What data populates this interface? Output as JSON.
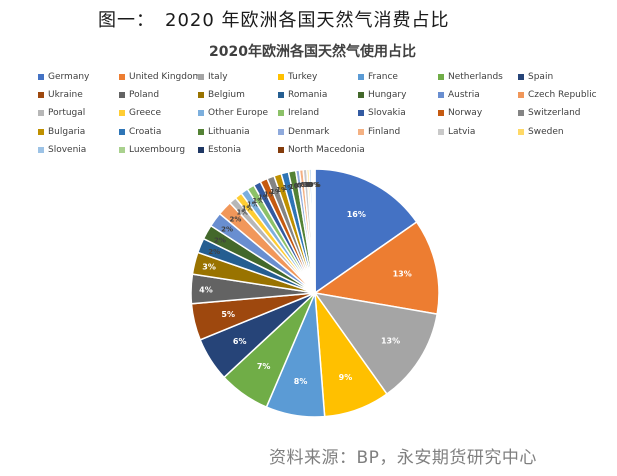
{
  "caption": "图一：　2020 年欧洲各国天然气消费占比",
  "source": "资料来源：BP，永安期货研究中心",
  "chart_data": {
    "type": "pie",
    "title": "2020年欧洲各国天然气使用占比",
    "legend_position": "top",
    "slices": [
      {
        "name": "Germany",
        "value": 16,
        "label": "16%",
        "color": "#4472C4"
      },
      {
        "name": "United Kingdom",
        "value": 13,
        "label": "13%",
        "color": "#ED7D31"
      },
      {
        "name": "Italy",
        "value": 13,
        "label": "13%",
        "color": "#A5A5A5"
      },
      {
        "name": "Turkey",
        "value": 9,
        "label": "9%",
        "color": "#FFC000"
      },
      {
        "name": "France",
        "value": 8,
        "label": "8%",
        "color": "#5B9BD5"
      },
      {
        "name": "Netherlands",
        "value": 7,
        "label": "7%",
        "color": "#70AD47"
      },
      {
        "name": "Spain",
        "value": 6,
        "label": "6%",
        "color": "#264478"
      },
      {
        "name": "Ukraine",
        "value": 5,
        "label": "5%",
        "color": "#9E480E"
      },
      {
        "name": "Poland",
        "value": 4,
        "label": "4%",
        "color": "#636363"
      },
      {
        "name": "Belgium",
        "value": 3,
        "label": "3%",
        "color": "#997300"
      },
      {
        "name": "Romania",
        "value": 2,
        "label": "2%",
        "color": "#255E91"
      },
      {
        "name": "Hungary",
        "value": 2,
        "label": "2%",
        "color": "#43682B"
      },
      {
        "name": "Austria",
        "value": 2,
        "label": "2%",
        "color": "#698ED0"
      },
      {
        "name": "Czech Republic",
        "value": 2,
        "label": "2%",
        "color": "#F1975A"
      },
      {
        "name": "Portugal",
        "value": 1,
        "label": "1%",
        "color": "#B7B7B7"
      },
      {
        "name": "Greece",
        "value": 1,
        "label": "1%",
        "color": "#FFCD33"
      },
      {
        "name": "Other Europe",
        "value": 1,
        "label": "1%",
        "color": "#7CAFDD"
      },
      {
        "name": "Ireland",
        "value": 1,
        "label": "1%",
        "color": "#8CC168"
      },
      {
        "name": "Slovakia",
        "value": 1,
        "label": "1%",
        "color": "#335AA1"
      },
      {
        "name": "Norway",
        "value": 1,
        "label": "1%",
        "color": "#C55A11"
      },
      {
        "name": "Switzerland",
        "value": 1,
        "label": "1%",
        "color": "#848484"
      },
      {
        "name": "Bulgaria",
        "value": 1,
        "label": "1%",
        "color": "#BF9000"
      },
      {
        "name": "Croatia",
        "value": 1,
        "label": "1%",
        "color": "#2E75B6"
      },
      {
        "name": "Lithuania",
        "value": 1,
        "label": "1%",
        "color": "#548235"
      },
      {
        "name": "Denmark",
        "value": 0.5,
        "label": "0%",
        "color": "#8FAADC"
      },
      {
        "name": "Finland",
        "value": 0.5,
        "label": "0%",
        "color": "#F4B183"
      },
      {
        "name": "Latvia",
        "value": 0.5,
        "label": "0%",
        "color": "#C9C9C9"
      },
      {
        "name": "Sweden",
        "value": 0.3,
        "label": "0%",
        "color": "#FFD966"
      },
      {
        "name": "Slovenia",
        "value": 0.3,
        "label": "0%",
        "color": "#9DC3E6"
      },
      {
        "name": "Luxembourg",
        "value": 0.2,
        "label": "0%",
        "color": "#A9D18E"
      },
      {
        "name": "Estonia",
        "value": 0.2,
        "label": "0%",
        "color": "#1F3864"
      },
      {
        "name": "North Macedonia",
        "value": 0.1,
        "label": "0%",
        "color": "#843C0C"
      }
    ]
  }
}
